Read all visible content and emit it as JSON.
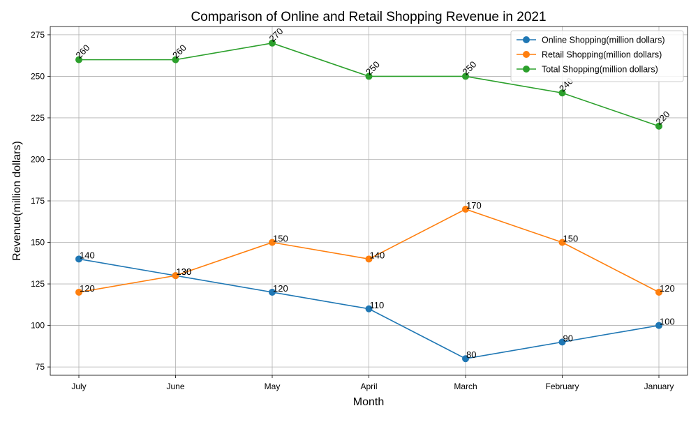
{
  "chart_data": {
    "type": "line",
    "title": "Comparison of Online and Retail Shopping Revenue in 2021",
    "xlabel": "Month",
    "ylabel": "Revenue(million dollars)",
    "categories": [
      "July",
      "June",
      "May",
      "April",
      "March",
      "February",
      "January"
    ],
    "ylim": [
      70,
      280
    ],
    "yticks": [
      75,
      100,
      125,
      150,
      175,
      200,
      225,
      250,
      275
    ],
    "grid": true,
    "legend_position": "top-right",
    "series": [
      {
        "name": "Online Shopping(million dollars)",
        "color": "#1f77b4",
        "values": [
          140,
          130,
          120,
          110,
          80,
          90,
          100
        ],
        "label_rotation": 0
      },
      {
        "name": "Retail Shopping(million dollars)",
        "color": "#ff7f0e",
        "values": [
          120,
          130,
          150,
          140,
          170,
          150,
          120
        ],
        "label_rotation": 0
      },
      {
        "name": "Total Shopping(million dollars)",
        "color": "#2ca02c",
        "values": [
          260,
          260,
          270,
          250,
          250,
          240,
          220
        ],
        "label_rotation": -45
      }
    ]
  }
}
